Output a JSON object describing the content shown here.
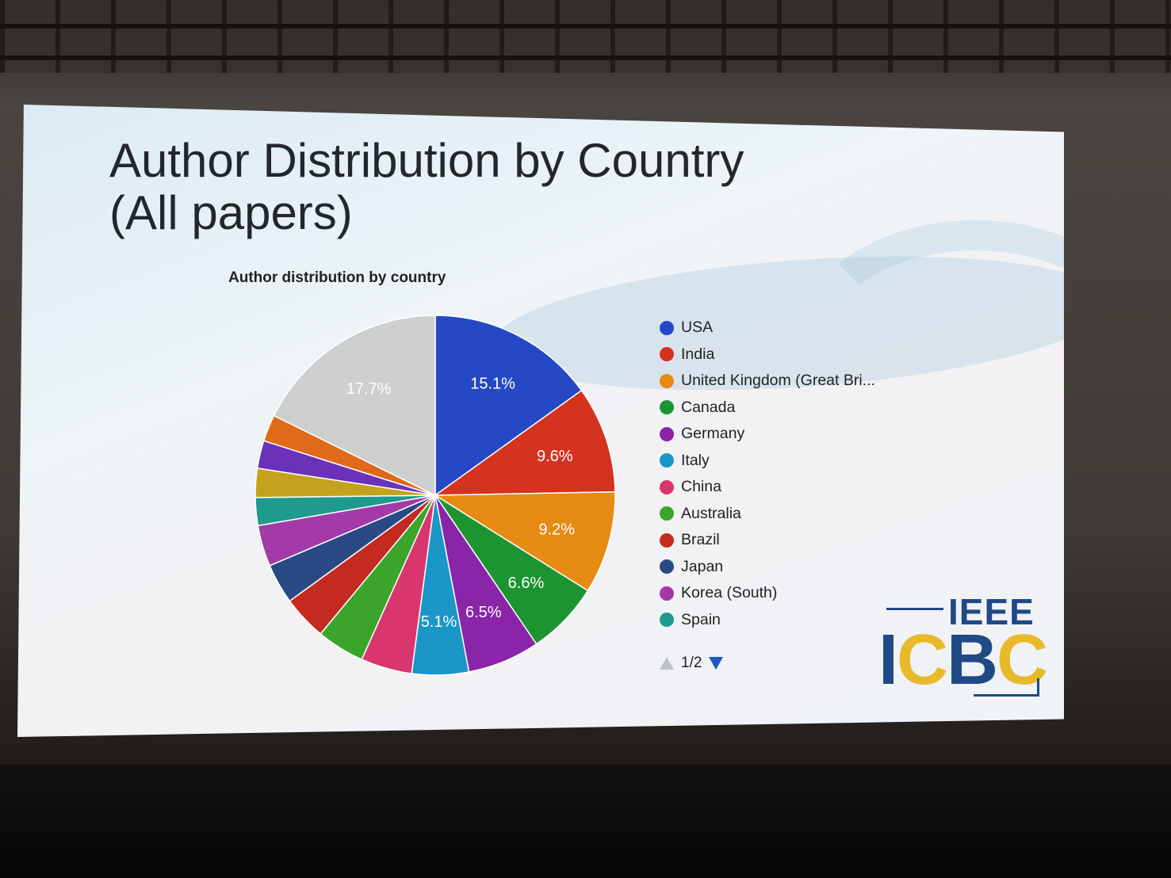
{
  "slide": {
    "title_line1": "Author Distribution by Country",
    "title_line2": "(All papers)"
  },
  "chart_data": {
    "type": "pie",
    "title": "Author distribution by country",
    "slices": [
      {
        "label": "USA",
        "value": 15.1,
        "color": "#2549c4",
        "shown_label": "15.1%"
      },
      {
        "label": "India",
        "value": 9.6,
        "color": "#d4331f",
        "shown_label": "9.6%"
      },
      {
        "label": "United Kingdom (Great Bri...",
        "value": 9.2,
        "color": "#e58a12",
        "shown_label": "9.2%"
      },
      {
        "label": "Canada",
        "value": 6.6,
        "color": "#1d9432",
        "shown_label": "6.6%"
      },
      {
        "label": "Germany",
        "value": 6.5,
        "color": "#8a24a8",
        "shown_label": "6.5%"
      },
      {
        "label": "Italy",
        "value": 5.1,
        "color": "#1a96c8",
        "shown_label": "5.1%"
      },
      {
        "label": "China",
        "value": 4.6,
        "color": "#d93670",
        "shown_label": ""
      },
      {
        "label": "Australia",
        "value": 4.3,
        "color": "#3aa52a",
        "shown_label": ""
      },
      {
        "label": "Brazil",
        "value": 4.0,
        "color": "#c42a20",
        "shown_label": ""
      },
      {
        "label": "Japan",
        "value": 3.6,
        "color": "#2a4a85",
        "shown_label": ""
      },
      {
        "label": "Korea (South)",
        "value": 3.7,
        "color": "#a33aa8",
        "shown_label": ""
      },
      {
        "label": "Spain",
        "value": 2.5,
        "color": "#1f9b8e",
        "shown_label": ""
      },
      {
        "label": "",
        "value": 2.6,
        "color": "#c4a21e",
        "shown_label": ""
      },
      {
        "label": "",
        "value": 2.5,
        "color": "#6a32b8",
        "shown_label": ""
      },
      {
        "label": "",
        "value": 2.4,
        "color": "#e06a1a",
        "shown_label": ""
      },
      {
        "label": "",
        "value": 17.7,
        "color": "#cfcfcf",
        "shown_label": "17.7%"
      }
    ],
    "legend_position": "right"
  },
  "legend": {
    "items": [
      "USA",
      "India",
      "United Kingdom (Great Bri...",
      "Canada",
      "Germany",
      "Italy",
      "China",
      "Australia",
      "Brazil",
      "Japan",
      "Korea (South)",
      "Spain"
    ],
    "page": "1/2"
  },
  "logo": {
    "ieee": "IEEE",
    "icbc_letters": [
      "I",
      "C",
      "B",
      "C"
    ],
    "icbc_colors": [
      "#1f4a86",
      "#e8b92a",
      "#1f4a86",
      "#e8b92a"
    ]
  }
}
